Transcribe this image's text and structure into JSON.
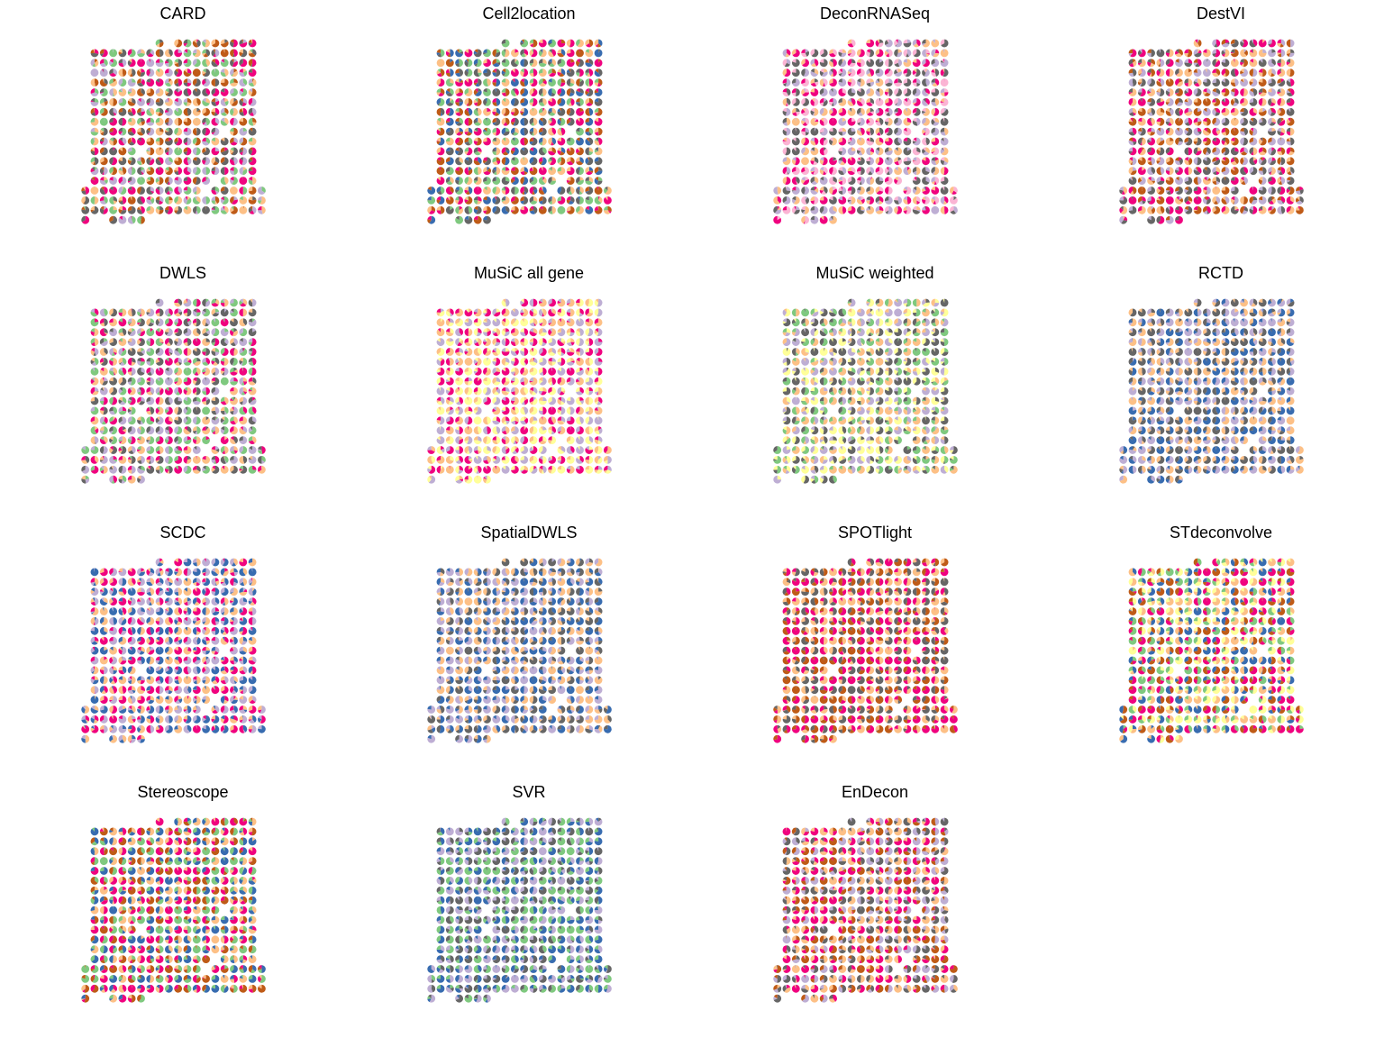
{
  "figure": {
    "panels": [
      {
        "title": "CARD"
      },
      {
        "title": "Cell2location"
      },
      {
        "title": "DeconRNASeq"
      },
      {
        "title": "DestVI"
      },
      {
        "title": "DWLS"
      },
      {
        "title": "MuSiC all gene"
      },
      {
        "title": "MuSiC weighted"
      },
      {
        "title": "RCTD"
      },
      {
        "title": "SCDC"
      },
      {
        "title": "SpatialDWLS"
      },
      {
        "title": "SPOTlight"
      },
      {
        "title": "STdeconvolve"
      },
      {
        "title": "Stereoscope"
      },
      {
        "title": "SVR"
      },
      {
        "title": "EnDecon"
      }
    ]
  },
  "chart_data": [
    {
      "type": "pie",
      "title": "CARD",
      "dominant_colors": [
        "#f0027f",
        "#666666",
        "#bf5b17",
        "#fdc086",
        "#7fc97f",
        "#beaed4"
      ]
    },
    {
      "type": "pie",
      "title": "Cell2location",
      "dominant_colors": [
        "#bf5b17",
        "#f0027f",
        "#fdc086",
        "#7fc97f",
        "#666666",
        "#386cb0"
      ]
    },
    {
      "type": "pie",
      "title": "DeconRNASeq",
      "dominant_colors": [
        "#fbb4d4",
        "#f0027f",
        "#fdc086",
        "#beaed4",
        "#666666"
      ]
    },
    {
      "type": "pie",
      "title": "DestVI",
      "dominant_colors": [
        "#bf5b17",
        "#fdc086",
        "#f0027f",
        "#666666",
        "#beaed4"
      ]
    },
    {
      "type": "pie",
      "title": "DWLS",
      "dominant_colors": [
        "#beaed4",
        "#666666",
        "#fdc086",
        "#f0027f",
        "#7fc97f"
      ]
    },
    {
      "type": "pie",
      "title": "MuSiC all gene",
      "dominant_colors": [
        "#f0027f",
        "#beaed4",
        "#ffff99",
        "#fdc086"
      ]
    },
    {
      "type": "pie",
      "title": "MuSiC weighted",
      "dominant_colors": [
        "#ffff99",
        "#beaed4",
        "#fdc086",
        "#7fc97f",
        "#666666"
      ]
    },
    {
      "type": "pie",
      "title": "RCTD",
      "dominant_colors": [
        "#fdc086",
        "#beaed4",
        "#386cb0",
        "#666666"
      ]
    },
    {
      "type": "pie",
      "title": "SCDC",
      "dominant_colors": [
        "#beaed4",
        "#f0027f",
        "#fdc086",
        "#386cb0"
      ]
    },
    {
      "type": "pie",
      "title": "SpatialDWLS",
      "dominant_colors": [
        "#fdc086",
        "#beaed4",
        "#386cb0",
        "#666666"
      ]
    },
    {
      "type": "pie",
      "title": "SPOTlight",
      "dominant_colors": [
        "#f0027f",
        "#bf5b17",
        "#666666",
        "#fdc086"
      ]
    },
    {
      "type": "pie",
      "title": "STdeconvolve",
      "dominant_colors": [
        "#7fc97f",
        "#f0027f",
        "#bf5b17",
        "#386cb0",
        "#fdc086",
        "#ffff99"
      ]
    },
    {
      "type": "pie",
      "title": "Stereoscope",
      "dominant_colors": [
        "#bf5b17",
        "#f0027f",
        "#fdc086",
        "#386cb0",
        "#7fc97f"
      ]
    },
    {
      "type": "pie",
      "title": "SVR",
      "dominant_colors": [
        "#beaed4",
        "#386cb0",
        "#7fc97f",
        "#666666"
      ]
    },
    {
      "type": "pie",
      "title": "EnDecon",
      "dominant_colors": [
        "#bf5b17",
        "#f0027f",
        "#fdc086",
        "#666666",
        "#beaed4"
      ]
    }
  ]
}
